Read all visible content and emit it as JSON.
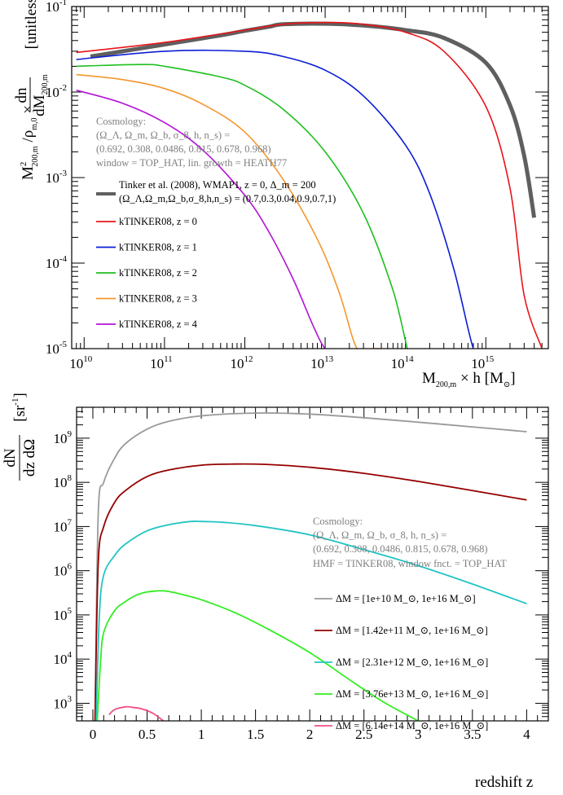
{
  "chart_data": [
    {
      "type": "line",
      "xscale": "log",
      "yscale": "log",
      "xlim": [
        7000000000.0,
        6000000000000000.0
      ],
      "ylim": [
        1e-05,
        0.1
      ],
      "xlabel": "M_{200,m} × h  [M_⊙]",
      "ylabel": "M²_{200,m} /ρ_{m,0} × dn/dM_{200,m}  [unitless]",
      "x_ticks": [
        "10^10",
        "10^11",
        "10^12",
        "10^13",
        "10^14",
        "10^15"
      ],
      "y_ticks": [
        "10^-5",
        "10^-4",
        "10^-3",
        "10^-2",
        "10^-1"
      ],
      "cosmology_text": [
        "Cosmology:",
        "(Ω_Λ, Ω_m, Ω_b, σ_8, h, n_s) =",
        "(0.692, 0.308, 0.0486, 0.815, 0.678, 0.968)",
        "window = TOP_HAT, lin. growth = HEATH77"
      ],
      "reference": {
        "name": "Tinker et al. (2008), WMAP1, z = 0, Δ_m = 200",
        "name2": "(Ω_Λ,Ω_m,Ω_b,σ_8,h,n_s) = (0.7,0.3,0.04,0.9,0.7,1)",
        "color": "#5f5f5f",
        "x": [
          12000000000.0,
          100000000000.0,
          500000000000.0,
          1000000000000.0,
          2000000000000.0,
          3000000000000.0,
          10000000000000.0,
          30000000000000.0,
          100000000000000.0,
          300000000000000.0,
          1000000000000000.0,
          2000000000000000.0,
          3000000000000000.0,
          4000000000000000.0
        ],
        "y": [
          0.026,
          0.036,
          0.046,
          0.052,
          0.058,
          0.062,
          0.063,
          0.06,
          0.053,
          0.043,
          0.022,
          0.007,
          0.0018,
          0.00034
        ]
      },
      "series": [
        {
          "name": "kTINKER08, z = 0",
          "color": "#e8141a",
          "x": [
            8000000000.0,
            100000000000.0,
            1000000000000.0,
            3000000000000.0,
            10000000000000.0,
            30000000000000.0,
            100000000000000.0,
            300000000000000.0,
            1000000000000000.0,
            2000000000000000.0,
            3000000000000000.0,
            5000000000000000.0
          ],
          "y": [
            0.029,
            0.038,
            0.053,
            0.062,
            0.065,
            0.062,
            0.05,
            0.03,
            0.0068,
            0.00075,
            4.2e-05,
            1e-05
          ]
        },
        {
          "name": "kTINKER08, z = 1",
          "color": "#0b1ed6",
          "x": [
            8000000000.0,
            100000000000.0,
            1000000000000.0,
            3000000000000.0,
            10000000000000.0,
            30000000000000.0,
            100000000000000.0,
            200000000000000.0,
            400000000000000.0,
            700000000000000.0,
            900000000000000.0
          ],
          "y": [
            0.024,
            0.03,
            0.03,
            0.026,
            0.018,
            0.009,
            0.0024,
            0.00065,
            8.5e-05,
            1e-05,
            1e-05
          ]
        },
        {
          "name": "kTINKER08, z = 2",
          "color": "#1fbf1f",
          "x": [
            8000000000.0,
            50000000000.0,
            100000000000.0,
            500000000000.0,
            1000000000000.0,
            3000000000000.0,
            10000000000000.0,
            30000000000000.0,
            70000000000000.0,
            120000000000000.0,
            180000000000000.0
          ],
          "y": [
            0.02,
            0.021,
            0.02,
            0.015,
            0.012,
            0.0063,
            0.002,
            0.00038,
            4.8e-05,
            7e-06,
            1e-05
          ]
        },
        {
          "name": "kTINKER08, z = 3",
          "color": "#f5962d",
          "x": [
            8000000000.0,
            30000000000.0,
            100000000000.0,
            300000000000.0,
            1000000000000.0,
            3000000000000.0,
            8000000000000.0,
            15000000000000.0,
            25000000000000.0,
            40000000000000.0,
            50000000000000.0
          ],
          "y": [
            0.016,
            0.014,
            0.011,
            0.0072,
            0.0034,
            0.00095,
            0.00019,
            4.5e-05,
            1e-05,
            1e-05,
            1e-05
          ]
        },
        {
          "name": "kTINKER08, z = 4",
          "color": "#b213d4",
          "x": [
            8000000000.0,
            30000000000.0,
            100000000000.0,
            300000000000.0,
            1000000000000.0,
            2000000000000.0,
            4000000000000.0,
            7000000000000.0,
            10000000000000.0,
            13000000000000.0
          ],
          "y": [
            0.0105,
            0.0074,
            0.0044,
            0.0021,
            0.00062,
            0.00023,
            6.5e-05,
            1.9e-05,
            1e-05,
            1e-05
          ]
        }
      ]
    },
    {
      "type": "line",
      "xscale": "linear",
      "yscale": "log",
      "xlim": [
        -0.15,
        4.2
      ],
      "ylim": [
        400,
        5000000000.0
      ],
      "xlabel": "redshift z",
      "ylabel": "dN/dz dΩ  [sr^-1]",
      "x_ticks": [
        "0",
        "0.5",
        "1",
        "1.5",
        "2",
        "2.5",
        "3",
        "3.5",
        "4"
      ],
      "y_ticks": [
        "10^3",
        "10^4",
        "10^5",
        "10^6",
        "10^7",
        "10^8",
        "10^9"
      ],
      "cosmology_text": [
        "Cosmology:",
        "(Ω_Λ, Ω_m, Ω_b, σ_8, h, n_s) =",
        "(0.692, 0.308, 0.0486, 0.815, 0.678, 0.968)",
        "HMF = TINKER08,  window fnct. = TOP_HAT"
      ],
      "series": [
        {
          "name": "ΔM = [1e+10 M_⊙, 1e+16 M_⊙]",
          "color": "#999999",
          "x": [
            0.02,
            0.05,
            0.1,
            0.2,
            0.3,
            0.5,
            0.7,
            1.0,
            1.5,
            2.0,
            2.5,
            3.0,
            3.5,
            4.0
          ],
          "y": [
            400,
            20000000.0,
            100000000.0,
            350000000.0,
            750000000.0,
            1600000000.0,
            2400000000.0,
            3200000000.0,
            3700000000.0,
            3500000000.0,
            2900000000.0,
            2300000000.0,
            1800000000.0,
            1400000000.0
          ]
        },
        {
          "name": "ΔM = [1.42e+11 M_⊙, 1e+16 M_⊙]",
          "color": "#960000",
          "x": [
            0.02,
            0.05,
            0.1,
            0.2,
            0.3,
            0.5,
            0.7,
            1.0,
            1.3,
            1.6,
            2.0,
            2.5,
            3.0,
            3.5,
            4.0
          ],
          "y": [
            400,
            1500000.0,
            10000000.0,
            35000000.0,
            65000000.0,
            135000000.0,
            190000000.0,
            245000000.0,
            260000000.0,
            255000000.0,
            220000000.0,
            160000000.0,
            105000000.0,
            65000000.0,
            40000000.0
          ]
        },
        {
          "name": "ΔM = [2.31e+12 M_⊙, 1e+16 M_⊙]",
          "color": "#22c4c4",
          "x": [
            0.03,
            0.06,
            0.1,
            0.2,
            0.3,
            0.5,
            0.7,
            0.9,
            1.0,
            1.2,
            1.5,
            2.0,
            2.5,
            3.0,
            3.5,
            4.0
          ],
          "y": [
            400,
            100000.0,
            800000.0,
            2200000.0,
            4000000.0,
            8000000.0,
            11000000.0,
            13000000.0,
            13000000.0,
            12500000.0,
            10500000.0,
            6500000.0,
            3000000.0,
            1300000.0,
            500000.0,
            180000.0
          ]
        },
        {
          "name": "ΔM = [3.76e+13 M_⊙, 1e+16 M_⊙]",
          "color": "#33ee22",
          "x": [
            0.04,
            0.07,
            0.1,
            0.2,
            0.3,
            0.4,
            0.5,
            0.6,
            0.65,
            0.7,
            0.8,
            1.0,
            1.3,
            1.6,
            2.0,
            2.4,
            2.7,
            3.0
          ],
          "y": [
            400,
            8000,
            40000.0,
            125000.0,
            200000.0,
            280000.0,
            330000.0,
            350000.0,
            350000.0,
            340000.0,
            300000.0,
            220000.0,
            115000.0,
            50000.0,
            14000.0,
            3000,
            1000,
            400
          ]
        },
        {
          "name": "ΔM = [6.14e+14 M_⊙, 1e+16 M_⊙]",
          "color": "#f0508a",
          "x": [
            0.15,
            0.2,
            0.3,
            0.35,
            0.45,
            0.55,
            0.65
          ],
          "y": [
            550,
            720,
            830,
            820,
            750,
            600,
            400
          ]
        }
      ]
    }
  ]
}
